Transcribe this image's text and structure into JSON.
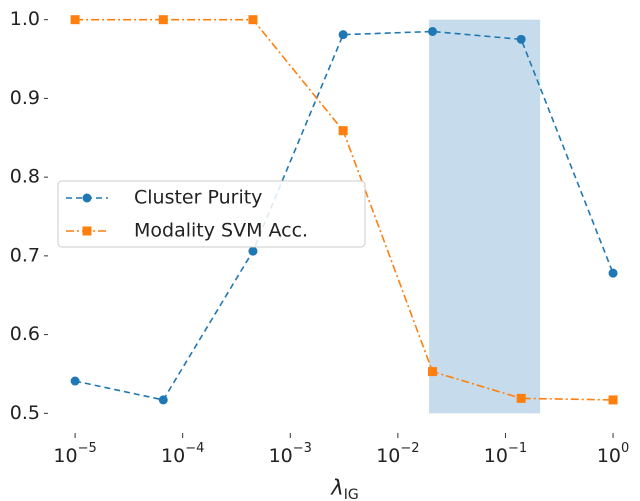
{
  "chart_data": {
    "type": "line",
    "xlabel": "λ",
    "xlabel_sub": "IG",
    "x": [
      1e-05,
      6.6e-05,
      0.00045,
      0.0031,
      0.021,
      0.14,
      1
    ],
    "series": [
      {
        "name": "Cluster Purity",
        "color": "#1f77b4",
        "dash": "6,4",
        "marker": "circle",
        "values": [
          0.541,
          0.517,
          0.706,
          0.981,
          0.985,
          0.975,
          0.678
        ]
      },
      {
        "name": "Modality SVM Acc.",
        "color": "#ff7f0e",
        "dash": "8,3,2,3",
        "marker": "square",
        "values": [
          1.0,
          1.0,
          1.0,
          0.859,
          0.553,
          0.519,
          0.517
        ]
      }
    ],
    "span": {
      "x": [
        0.0195,
        0.21
      ],
      "y": [
        0.5,
        1.0
      ],
      "color": "#c6dcec"
    },
    "xscale": "log",
    "xlim": [
      5.6e-06,
      1.78
    ],
    "ylim": [
      0.475,
      1.025
    ],
    "xticks": [
      {
        "value": 1e-05,
        "label": "10",
        "exponent": "−5"
      },
      {
        "value": 0.0001,
        "label": "10",
        "exponent": "−4"
      },
      {
        "value": 0.001,
        "label": "10",
        "exponent": "−3"
      },
      {
        "value": 0.01,
        "label": "10",
        "exponent": "−2"
      },
      {
        "value": 0.1,
        "label": "10",
        "exponent": "−1"
      },
      {
        "value": 1,
        "label": "10",
        "exponent": "0"
      }
    ],
    "yticks": [
      {
        "value": 0.5,
        "label": "0.5"
      },
      {
        "value": 0.6,
        "label": "0.6"
      },
      {
        "value": 0.7,
        "label": "0.7"
      },
      {
        "value": 0.8,
        "label": "0.8"
      },
      {
        "value": 0.9,
        "label": "0.9"
      },
      {
        "value": 1.0,
        "label": "1.0"
      }
    ],
    "legend": "center left"
  }
}
